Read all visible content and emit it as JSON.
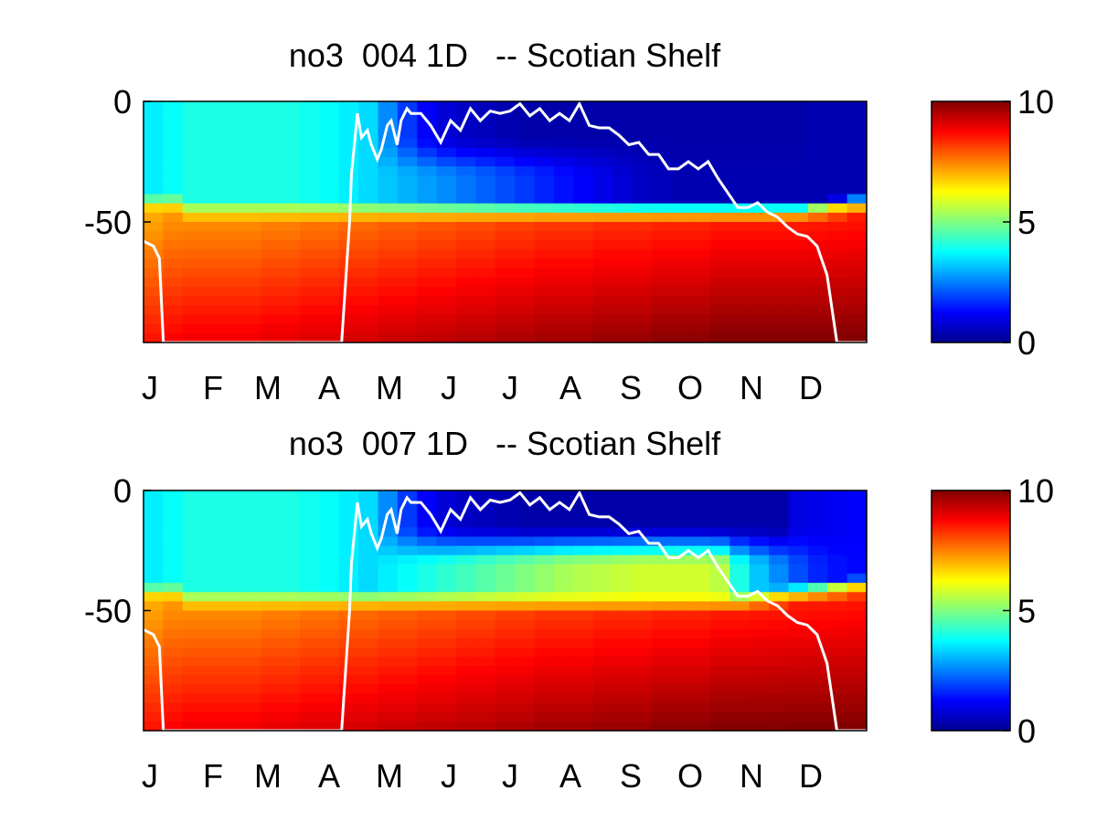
{
  "panels": [
    {
      "title": "no3  004 1D   -- Scotian Shelf",
      "chart_data": {
        "type": "heatmap",
        "title": "no3  004 1D   -- Scotian Shelf",
        "xlabel": "",
        "ylabel": "",
        "x_tick_labels": [
          "J",
          "F",
          "M",
          "A",
          "M",
          "J",
          "J",
          "A",
          "S",
          "O",
          "N",
          "D"
        ],
        "y_ticks": [
          0,
          -50
        ],
        "ylim": [
          -100,
          0
        ],
        "xlim": [
          0,
          365
        ],
        "colorscale": "jet",
        "color_range": [
          0,
          10
        ],
        "colorbar_ticks": [
          0,
          5,
          10
        ],
        "surface": [
          3.6,
          3.8,
          4.0,
          4.0,
          4.0,
          4.0,
          4.0,
          4.0,
          3.9,
          3.8,
          3.6,
          3.4,
          2.6,
          1.8,
          1.2,
          0.8,
          0.6,
          0.5,
          0.4,
          0.3,
          0.3,
          0.3,
          0.3,
          0.3,
          0.3,
          0.3,
          0.3,
          0.3,
          0.3,
          0.3,
          0.3,
          0.3,
          0.3,
          0.3,
          0.4,
          0.4,
          0.4
        ],
        "upper": [
          3.6,
          3.8,
          4.0,
          4.0,
          4.0,
          4.0,
          4.0,
          4.0,
          3.9,
          3.8,
          3.6,
          3.4,
          3.2,
          3.0,
          2.8,
          2.6,
          2.4,
          2.2,
          2.0,
          1.8,
          1.6,
          1.4,
          1.2,
          1.0,
          0.8,
          0.6,
          0.5,
          0.4,
          0.4,
          0.4,
          0.4,
          0.4,
          0.4,
          0.4,
          0.4,
          0.4,
          0.4
        ],
        "cline_depth": [
          45,
          45,
          48,
          48,
          48,
          48,
          48,
          48,
          48,
          48,
          48,
          48,
          48,
          48,
          48,
          48,
          48,
          48,
          48,
          48,
          48,
          48,
          48,
          48,
          48,
          48,
          48,
          48,
          48,
          48,
          48,
          48,
          48,
          48,
          47,
          46,
          45
        ],
        "deep": [
          8.5,
          8.7,
          8.8,
          8.8,
          8.8,
          8.8,
          8.9,
          8.9,
          9.0,
          9.0,
          9.1,
          9.1,
          9.2,
          9.2,
          9.3,
          9.3,
          9.4,
          9.4,
          9.5,
          9.5,
          9.6,
          9.6,
          9.6,
          9.7,
          9.7,
          9.7,
          9.8,
          9.8,
          9.8,
          9.9,
          9.9,
          9.9,
          9.9,
          9.9,
          9.9,
          9.9,
          9.9
        ],
        "mld_line": {
          "day": [
            0,
            5,
            8,
            10,
            25,
            40,
            60,
            80,
            100,
            104,
            105,
            108,
            110,
            113,
            115,
            118,
            120,
            123,
            125,
            128,
            130,
            133,
            135,
            140,
            145,
            150,
            155,
            160,
            165,
            170,
            175,
            180,
            185,
            190,
            195,
            200,
            205,
            210,
            215,
            220,
            225,
            230,
            235,
            240,
            245,
            250,
            255,
            260,
            265,
            270,
            275,
            280,
            285,
            290,
            295,
            300,
            305,
            310,
            315,
            320,
            325,
            330,
            335,
            340,
            345,
            350,
            355,
            358,
            361,
            365
          ],
          "depth": [
            -58,
            -60,
            -65,
            -100,
            -100,
            -100,
            -100,
            -100,
            -100,
            -50,
            -30,
            -5,
            -15,
            -12,
            -18,
            -24,
            -20,
            -10,
            -8,
            -18,
            -8,
            -3,
            -5,
            -5,
            -10,
            -17,
            -8,
            -12,
            -3,
            -8,
            -4,
            -5,
            -4,
            -1,
            -6,
            -3,
            -8,
            -5,
            -8,
            -1,
            -10,
            -11,
            -11,
            -14,
            -18,
            -17,
            -22,
            -22,
            -28,
            -28,
            -25,
            -28,
            -25,
            -32,
            -38,
            -44,
            -44,
            -42,
            -46,
            -48,
            -52,
            -55,
            -56,
            -60,
            -72,
            -100,
            -100,
            -100,
            -100,
            -100
          ]
        }
      }
    },
    {
      "title": "no3  007 1D   -- Scotian Shelf",
      "chart_data": {
        "type": "heatmap",
        "title": "no3  007 1D   -- Scotian Shelf",
        "xlabel": "",
        "ylabel": "",
        "x_tick_labels": [
          "J",
          "F",
          "M",
          "A",
          "M",
          "J",
          "J",
          "A",
          "S",
          "O",
          "N",
          "D"
        ],
        "y_ticks": [
          0,
          -50
        ],
        "ylim": [
          -100,
          0
        ],
        "xlim": [
          0,
          365
        ],
        "colorscale": "jet",
        "color_range": [
          0,
          10
        ],
        "colorbar_ticks": [
          0,
          5,
          10
        ],
        "surface": [
          3.6,
          3.8,
          4.0,
          4.0,
          4.0,
          4.0,
          4.0,
          4.0,
          3.9,
          3.8,
          3.6,
          3.4,
          2.6,
          1.8,
          1.2,
          0.8,
          0.6,
          0.5,
          0.4,
          0.3,
          0.3,
          0.3,
          0.3,
          0.3,
          0.3,
          0.3,
          0.3,
          0.3,
          0.3,
          0.3,
          0.3,
          0.3,
          0.3,
          0.9,
          1.0,
          1.1,
          1.2
        ],
        "upper": [
          3.6,
          3.8,
          4.0,
          4.0,
          4.0,
          4.0,
          4.0,
          4.0,
          3.9,
          3.8,
          3.6,
          3.4,
          3.6,
          3.8,
          4.0,
          4.2,
          4.4,
          4.6,
          4.8,
          5.0,
          5.2,
          5.4,
          5.5,
          5.6,
          5.7,
          5.8,
          5.8,
          5.8,
          5.8,
          5.6,
          4.0,
          3.2,
          2.6,
          2.0,
          1.6,
          1.4,
          1.3
        ],
        "cline_depth": [
          45,
          45,
          48,
          48,
          48,
          48,
          48,
          48,
          48,
          48,
          48,
          48,
          48,
          48,
          48,
          48,
          48,
          48,
          48,
          48,
          48,
          48,
          48,
          48,
          48,
          48,
          48,
          48,
          48,
          48,
          48,
          47,
          46,
          45,
          44,
          43,
          42
        ],
        "deep": [
          8.5,
          8.7,
          8.8,
          8.8,
          8.8,
          8.8,
          8.9,
          8.9,
          9.0,
          9.0,
          9.1,
          9.1,
          9.2,
          9.2,
          9.3,
          9.3,
          9.4,
          9.4,
          9.5,
          9.5,
          9.6,
          9.6,
          9.6,
          9.7,
          9.7,
          9.7,
          9.8,
          9.8,
          9.8,
          9.9,
          9.9,
          9.9,
          9.9,
          9.9,
          9.9,
          9.9,
          9.9
        ],
        "mld_line": {
          "day": [
            0,
            5,
            8,
            10,
            25,
            40,
            60,
            80,
            100,
            104,
            105,
            108,
            110,
            113,
            115,
            118,
            120,
            123,
            125,
            128,
            130,
            133,
            135,
            140,
            145,
            150,
            155,
            160,
            165,
            170,
            175,
            180,
            185,
            190,
            195,
            200,
            205,
            210,
            215,
            220,
            225,
            230,
            235,
            240,
            245,
            250,
            255,
            260,
            265,
            270,
            275,
            280,
            285,
            290,
            295,
            300,
            305,
            310,
            315,
            320,
            325,
            330,
            335,
            340,
            345,
            350,
            355,
            358,
            361,
            365
          ],
          "depth": [
            -58,
            -60,
            -65,
            -100,
            -100,
            -100,
            -100,
            -100,
            -100,
            -50,
            -30,
            -5,
            -15,
            -12,
            -18,
            -24,
            -20,
            -10,
            -8,
            -18,
            -8,
            -3,
            -5,
            -5,
            -10,
            -17,
            -8,
            -12,
            -3,
            -8,
            -4,
            -5,
            -4,
            -1,
            -6,
            -3,
            -8,
            -5,
            -8,
            -1,
            -10,
            -11,
            -11,
            -14,
            -18,
            -17,
            -22,
            -22,
            -28,
            -28,
            -25,
            -28,
            -25,
            -32,
            -38,
            -44,
            -44,
            -42,
            -46,
            -48,
            -52,
            -55,
            -56,
            -60,
            -72,
            -100,
            -100,
            -100,
            -100,
            -100
          ]
        }
      }
    }
  ]
}
